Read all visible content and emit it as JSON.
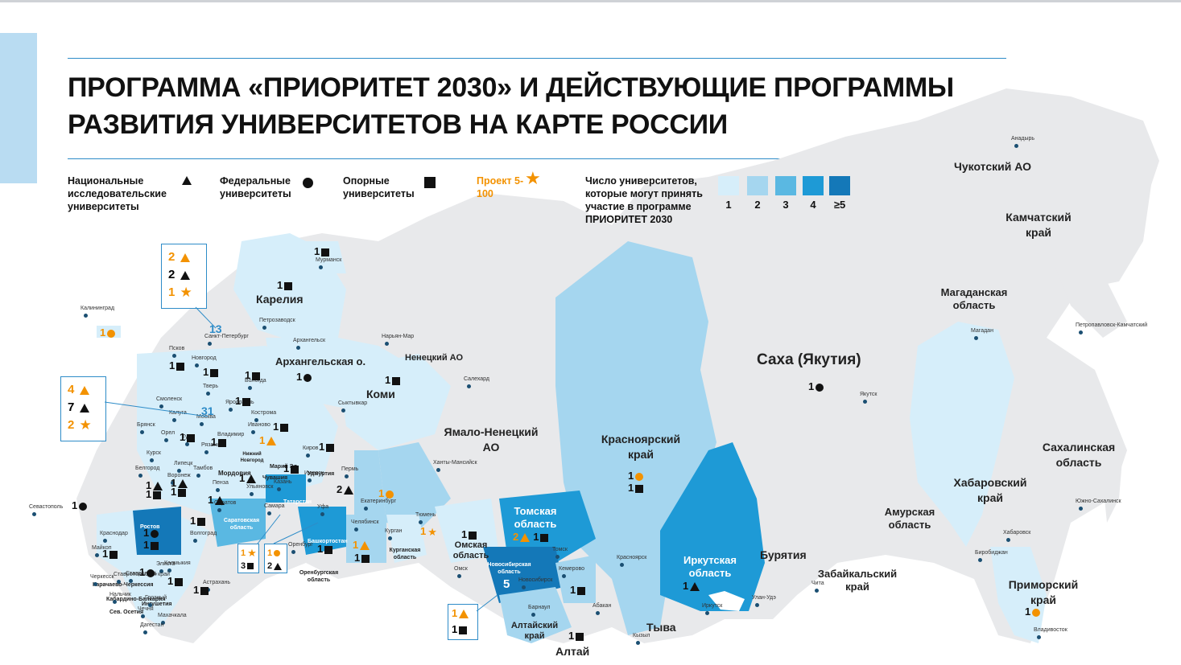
{
  "title": {
    "line1": "ПРОГРАММА «ПРИОРИТЕТ 2030» И ДЕЙСТВУЮЩИЕ ПРОГРАММЫ",
    "line2": "РАЗВИТИЯ УНИВЕРСИТЕТОВ НА КАРТЕ РОССИИ"
  },
  "legend": {
    "nru": "Национальные исследовательские университеты",
    "federal": "Федеральные университеты",
    "support": "Опорные университеты",
    "project": "Проект 5-100",
    "scale_title": "Число университетов, которые могут принять участие в программе ПРИОРИТЕТ 2030",
    "scale_labels": [
      "1",
      "2",
      "3",
      "4",
      "≥5"
    ],
    "scale_colors": [
      "#d6eefa",
      "#a5d6ef",
      "#5ab8e2",
      "#1e9ad6",
      "#1478b8"
    ],
    "symbol_colors": {
      "black": "#111111",
      "orange": "#f39200"
    }
  },
  "regions": [
    {
      "name": "Чукотский АО"
    },
    {
      "name": "Камчатский край"
    },
    {
      "name": "Магаданская область"
    },
    {
      "name": "Саха (Якутия)"
    },
    {
      "name": "Сахалинская область"
    },
    {
      "name": "Хабаровский край"
    },
    {
      "name": "Амурская область"
    },
    {
      "name": "Приморский край"
    },
    {
      "name": "Бурятия"
    },
    {
      "name": "Забайкальский край"
    },
    {
      "name": "Иркутская область"
    },
    {
      "name": "Красноярский край"
    },
    {
      "name": "Тыва"
    },
    {
      "name": "Алтай"
    },
    {
      "name": "Алтайский край"
    },
    {
      "name": "Томская область"
    },
    {
      "name": "Омская область"
    },
    {
      "name": "Новосибирская область"
    },
    {
      "name": "Ямало-Ненецкий АО"
    },
    {
      "name": "Ненецкий АО"
    },
    {
      "name": "Коми"
    },
    {
      "name": "Архангельская о."
    },
    {
      "name": "Карелия"
    },
    {
      "name": "Курганская область"
    },
    {
      "name": "Оренбургская область"
    },
    {
      "name": "Башкортостан"
    },
    {
      "name": "Татарстан"
    },
    {
      "name": "Саратовская область"
    },
    {
      "name": "Мордовия"
    },
    {
      "name": "Чувашия"
    },
    {
      "name": "Удмуртия"
    },
    {
      "name": "Марий Эл"
    },
    {
      "name": "Нижний Новгород"
    },
    {
      "name": "Ростов"
    },
    {
      "name": "Ингушетия"
    },
    {
      "name": "Карачаево-Черкессия"
    },
    {
      "name": "Кабардино-Балкария"
    },
    {
      "name": "Сев. Осетия"
    }
  ],
  "cities": [
    "Анадырь",
    "Петропавловск-Камчатский",
    "Магадан",
    "Якутск",
    "Южно-Сахалинск",
    "Хабаровск",
    "Биробиджан",
    "Владивосток",
    "Чита",
    "Улан-Удэ",
    "Иркутск",
    "Кызыл",
    "Абакан",
    "Красноярск",
    "Кемерово",
    "Барнаул",
    "Томск",
    "Новосибирск",
    "Омск",
    "Тюмень",
    "Курган",
    "Ханты-Мансийск",
    "Салехард",
    "Нарьян-Мар",
    "Сыктывкар",
    "Архангельск",
    "Мурманск",
    "Петрозаводск",
    "Вологда",
    "Санкт-Петербург",
    "Псков",
    "Новгород",
    "Тверь",
    "Ярославль",
    "Кострома",
    "Иваново",
    "Владимир",
    "Москва",
    "Смоленск",
    "Калуга",
    "Брянск",
    "Орел",
    "Тула",
    "Рязань",
    "Курск",
    "Белгород",
    "Воронеж",
    "Липецк",
    "Тамбов",
    "Пенза",
    "Саратов",
    "Волгоград",
    "Астрахань",
    "Элиста",
    "Ставрополь",
    "Краснодар",
    "Майкоп",
    "Нальчик",
    "Черкесск",
    "Грозный",
    "Махачкала",
    "Дагестан",
    "Чечня",
    "Калмыкия",
    "Ставропольский край",
    "Севастополь",
    "Калининград",
    "Самара",
    "Ульяновск",
    "Уфа",
    "Оренбург",
    "Челябинск",
    "Екатеринбург",
    "Пермь",
    "Ижевск",
    "Киров",
    "Казань"
  ],
  "counts": {
    "moscow": {
      "total": "31",
      "nru5100": "4",
      "nru": "7",
      "project": "2"
    },
    "spb": {
      "total": "13",
      "nru5100": "2",
      "nru": "2",
      "project": "1"
    },
    "novosibirsk": {
      "total": "5",
      "nru5100": "1",
      "support": "1"
    },
    "generic_one": "1",
    "tomsk": {
      "nru_orange": "2",
      "support": "1"
    },
    "samara_box": {
      "project": "1",
      "support": "3"
    },
    "ufa_box": {
      "federal_orange": "1",
      "nru": "2"
    }
  }
}
